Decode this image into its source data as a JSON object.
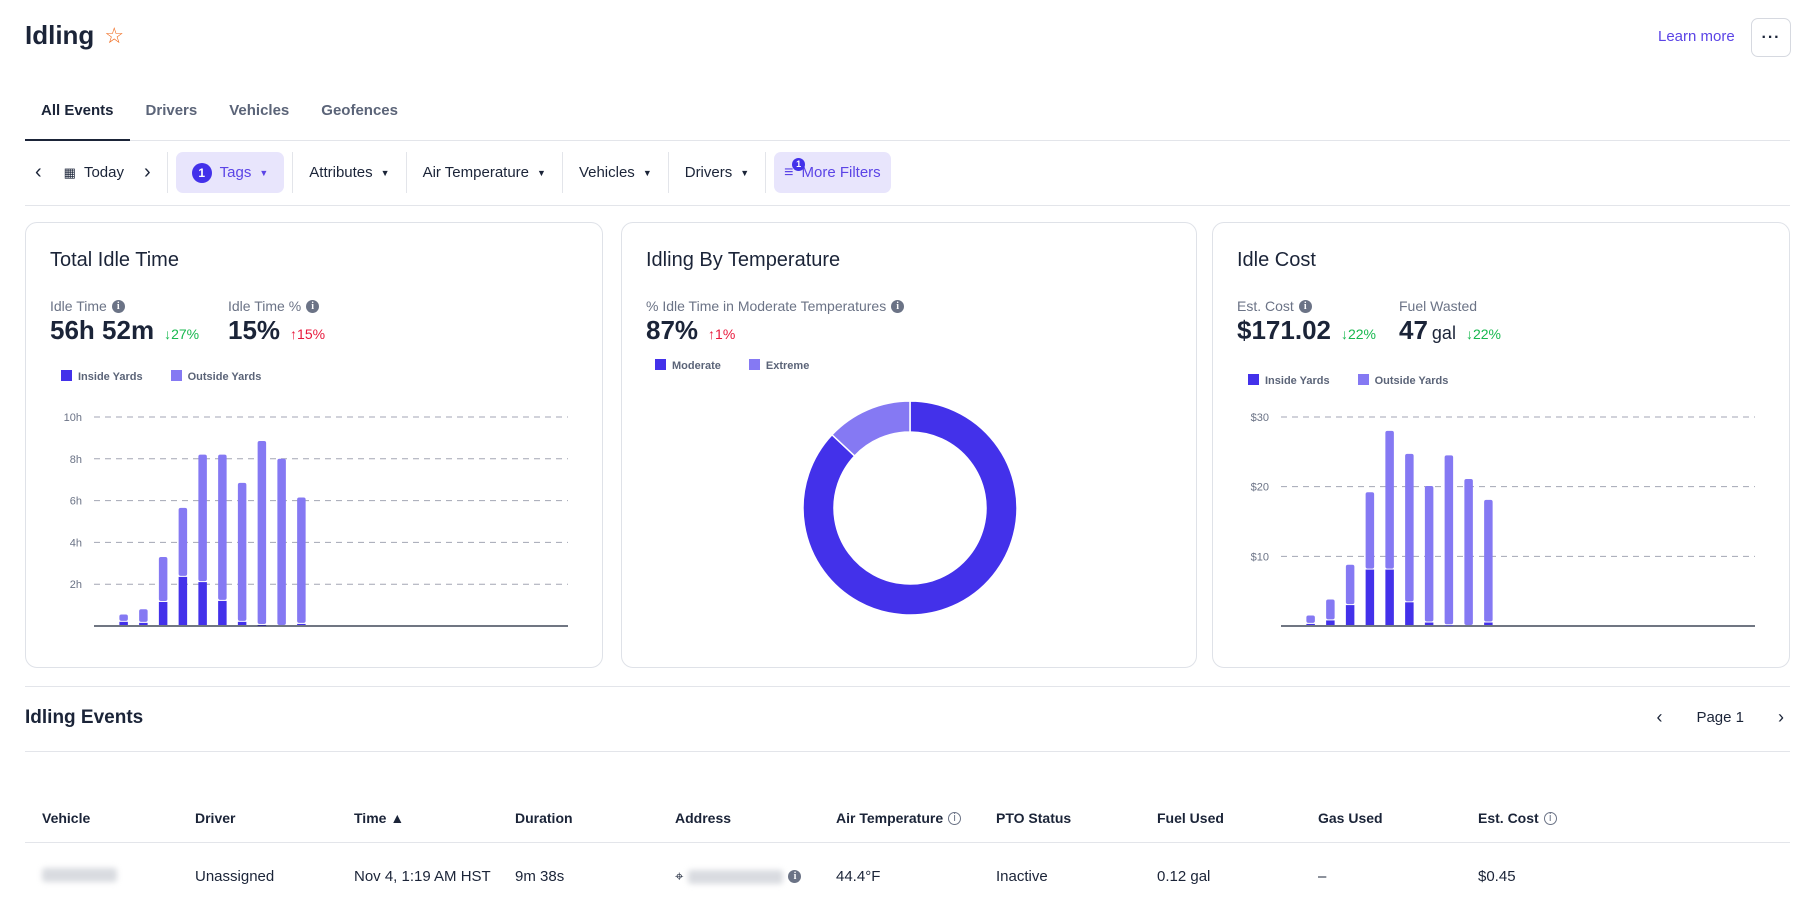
{
  "header": {
    "title": "Idling",
    "learn_more": "Learn more",
    "more_label": "···"
  },
  "tabs": [
    {
      "label": "All Events"
    },
    {
      "label": "Drivers"
    },
    {
      "label": "Vehicles"
    },
    {
      "label": "Geofences"
    }
  ],
  "filters": {
    "date": "Today",
    "tags": "Tags",
    "tags_count": "1",
    "attributes": "Attributes",
    "air_temperature": "Air Temperature",
    "vehicles": "Vehicles",
    "drivers": "Drivers",
    "more_filters": "More Filters",
    "more_filters_count": "1"
  },
  "colors": {
    "inside": "#4331ea",
    "outside": "#8579f3",
    "moderate": "#4331ea",
    "extreme": "#8579f3",
    "accent": "#5b44e6",
    "positive": "#18b84f",
    "negative": "#e8193c"
  },
  "cards": {
    "idle_time": {
      "title": "Total Idle Time",
      "stat1_label": "Idle Time",
      "stat1_value": "56h 52m",
      "stat1_change": "27%",
      "stat2_label": "Idle Time %",
      "stat2_value": "15%",
      "stat2_change": "15%",
      "legend_inside": "Inside Yards",
      "legend_outside": "Outside Yards"
    },
    "temperature": {
      "title": "Idling By Temperature",
      "stat_label": "% Idle Time in Moderate Temperatures",
      "stat_value": "87%",
      "stat_change": "1%",
      "legend_moderate": "Moderate",
      "legend_extreme": "Extreme"
    },
    "cost": {
      "title": "Idle Cost",
      "stat1_label": "Est. Cost",
      "stat1_value": "$171.02",
      "stat1_change": "22%",
      "stat2_label": "Fuel Wasted",
      "stat2_value": "47",
      "stat2_unit": "gal",
      "stat2_change": "22%",
      "legend_inside": "Inside Yards",
      "legend_outside": "Outside Yards"
    }
  },
  "chart_data": [
    {
      "type": "bar",
      "stacked": true,
      "ylim": [
        0,
        10
      ],
      "yticks": [
        "2h",
        "4h",
        "6h",
        "8h",
        "10h"
      ],
      "ytick_values": [
        2,
        4,
        6,
        8,
        10
      ],
      "grid": true,
      "legend": "top-left",
      "series": [
        {
          "name": "Inside Yards",
          "values": [
            0,
            0.2,
            0.15,
            1.15,
            2.35,
            2.1,
            1.2,
            0.2,
            0.05,
            0,
            0.1,
            0,
            0,
            0,
            0,
            0,
            0,
            0,
            0,
            0,
            0,
            0,
            0,
            0
          ]
        },
        {
          "name": "Outside Yards",
          "values": [
            0,
            0.35,
            0.65,
            2.15,
            3.3,
            6.1,
            7.0,
            6.65,
            8.8,
            8.0,
            6.05,
            0,
            0,
            0,
            0,
            0,
            0,
            0,
            0,
            0,
            0,
            0,
            0,
            0
          ]
        }
      ]
    },
    {
      "type": "pie",
      "donut": true,
      "legend": "top-left",
      "categories": [
        "Moderate",
        "Extreme"
      ],
      "values": [
        87,
        13
      ]
    },
    {
      "type": "bar",
      "stacked": true,
      "ylim": [
        0,
        30
      ],
      "yticks": [
        "$10",
        "$20",
        "$30"
      ],
      "ytick_values": [
        10,
        20,
        30
      ],
      "grid": true,
      "legend": "top-left",
      "series": [
        {
          "name": "Inside Yards",
          "values": [
            0,
            0.3,
            0.8,
            3.0,
            8.1,
            8.1,
            3.4,
            0.5,
            0.1,
            0,
            0.5,
            0,
            0,
            0,
            0,
            0,
            0,
            0,
            0,
            0,
            0,
            0,
            0,
            0
          ]
        },
        {
          "name": "Outside Yards",
          "values": [
            0,
            1.2,
            3.0,
            5.8,
            11.1,
            19.9,
            21.3,
            19.6,
            24.4,
            21.1,
            17.6,
            0,
            0,
            0,
            0,
            0,
            0,
            0,
            0,
            0,
            0,
            0,
            0,
            0
          ]
        }
      ]
    }
  ],
  "events": {
    "title": "Idling Events",
    "page": "Page 1",
    "columns": [
      "Vehicle",
      "Driver",
      "Time ▲",
      "Duration",
      "Address",
      "Air Temperature",
      "PTO Status",
      "Fuel Used",
      "Gas Used",
      "Est. Cost"
    ],
    "rows": [
      {
        "driver": "Unassigned",
        "time": "Nov 4, 1:19 AM HST",
        "duration": "9m 38s",
        "air_temperature": "44.4°F",
        "pto_status": "Inactive",
        "fuel_used": "0.12 gal",
        "gas_used": "–",
        "est_cost": "$0.45"
      }
    ]
  }
}
